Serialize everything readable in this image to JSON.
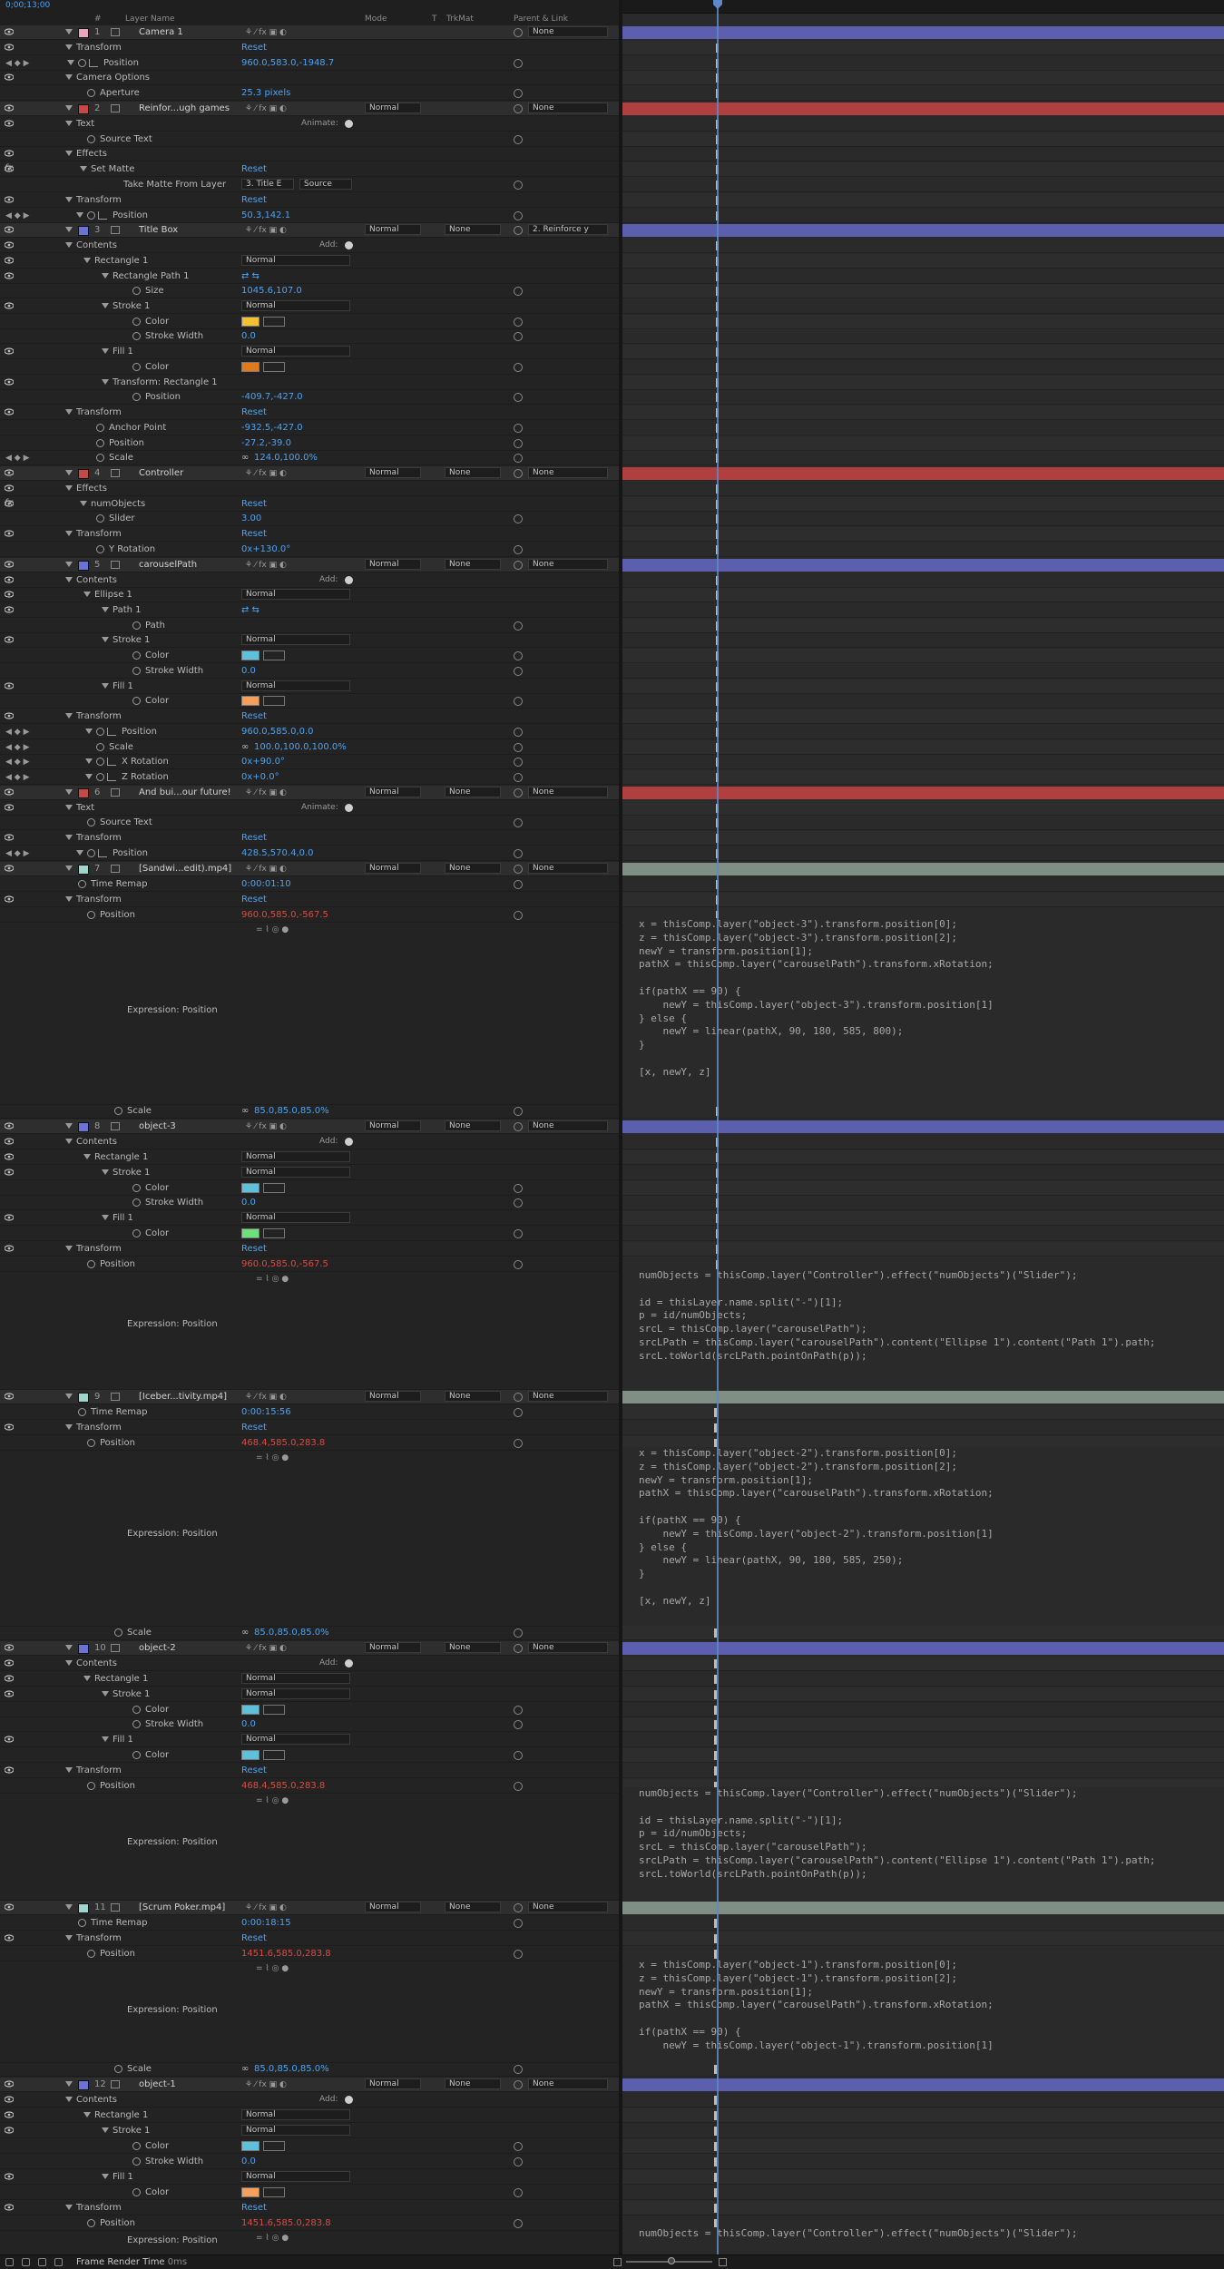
{
  "header": {
    "columns": {
      "hash": "#",
      "layer_name": "Layer Name",
      "mode": "Mode",
      "t": "T",
      "trkmat": "TrkMat",
      "parent": "Parent & Link"
    },
    "timecode": "0;00;13;00"
  },
  "colors": {
    "accent_blue": "#4aa3f5",
    "keyframe_red": "#e0493f",
    "cti": "#5f88c7",
    "bar_purple": "#5b5fae",
    "bar_red": "#b04040",
    "bar_gray": "#7f8f86"
  },
  "labels": {
    "reset": "Reset",
    "add": "Add:",
    "animate": "Animate:",
    "expression_position": "Expression: Position",
    "stroke_width": "Stroke Width",
    "color": "Color"
  },
  "layers": [
    {
      "num": "1",
      "name": "Camera 1",
      "parent": "None",
      "swatch": "#e6a7b8"
    },
    {
      "num": "2",
      "name": "Reinfor...ugh games",
      "mode": "Normal",
      "parent": "None",
      "swatch": "#c44a4a"
    },
    {
      "num": "3",
      "name": "Title Box",
      "mode": "Normal",
      "trkmat": "None",
      "parent": "2. Reinforce y",
      "swatch": "#6a72d6"
    },
    {
      "num": "4",
      "name": "Controller",
      "mode": "Normal",
      "trkmat": "None",
      "parent": "None",
      "swatch": "#c44a4a"
    },
    {
      "num": "5",
      "name": "carouselPath",
      "mode": "Normal",
      "trkmat": "None",
      "parent": "None",
      "swatch": "#6a72d6"
    },
    {
      "num": "6",
      "name": "And bui...our future!",
      "mode": "Normal",
      "trkmat": "None",
      "parent": "None",
      "swatch": "#c44a4a"
    },
    {
      "num": "7",
      "name": "[Sandwi...edit).mp4]",
      "mode": "Normal",
      "trkmat": "None",
      "parent": "None",
      "swatch": "#9ed6cf"
    },
    {
      "num": "8",
      "name": "object-3",
      "mode": "Normal",
      "trkmat": "None",
      "parent": "None",
      "swatch": "#6a72d6"
    },
    {
      "num": "9",
      "name": "[Iceber...tivity.mp4]",
      "mode": "Normal",
      "trkmat": "None",
      "parent": "None",
      "swatch": "#9ed6cf"
    },
    {
      "num": "10",
      "name": "object-2",
      "mode": "Normal",
      "trkmat": "None",
      "parent": "None",
      "swatch": "#6a72d6"
    },
    {
      "num": "11",
      "name": "[Scrum Poker.mp4]",
      "mode": "Normal",
      "trkmat": "None",
      "parent": "None",
      "swatch": "#9ed6cf"
    },
    {
      "num": "12",
      "name": "object-1",
      "mode": "Normal",
      "trkmat": "None",
      "parent": "None",
      "swatch": "#6a72d6"
    }
  ],
  "props": {
    "l1_transform": "Transform",
    "l1_position": "Position",
    "l1_position_val": "960.0,583.0,-1948.7",
    "l1_camopts": "Camera Options",
    "l1_aperture": "Aperture",
    "l1_aperture_val": "25.3 pixels",
    "l2_text": "Text",
    "l2_source": "Source Text",
    "l2_effects": "Effects",
    "l2_setmatte": "Set Matte",
    "l2_takematte": "Take Matte From Layer",
    "l2_takematte_val": "3. Title E",
    "l2_source_dd": "Source",
    "l2_transform": "Transform",
    "l2_position": "Position",
    "l2_position_val": "50.3,142.1",
    "l3_contents": "Contents",
    "l3_rect": "Rectangle 1",
    "l3_rect_mode": "Normal",
    "l3_rectpath": "Rectangle Path 1",
    "l3_size": "Size",
    "l3_size_val": "1045.6,107.0",
    "l3_stroke": "Stroke 1",
    "l3_stroke_mode": "Normal",
    "l3_stroke_width_val": "0.0",
    "l3_fill": "Fill 1",
    "l3_fill_mode": "Normal",
    "l3_trans_rect": "Transform: Rectangle 1",
    "l3_trans_pos": "Position",
    "l3_trans_pos_val": "-409.7,-427.0",
    "l3_transform": "Transform",
    "l3_anchor": "Anchor Point",
    "l3_anchor_val": "-932.5,-427.0",
    "l3_position": "Position",
    "l3_position_val": "-27.2,-39.0",
    "l3_scale": "Scale",
    "l3_scale_val": "124.0,100.0%",
    "l4_effects": "Effects",
    "l4_numobj": "numObjects",
    "l4_slider": "Slider",
    "l4_slider_val": "3.00",
    "l4_transform": "Transform",
    "l4_yrot": "Y Rotation",
    "l4_yrot_val": "0x+130.0°",
    "l5_contents": "Contents",
    "l5_ellipse": "Ellipse 1",
    "l5_ellipse_mode": "Normal",
    "l5_path1": "Path 1",
    "l5_path": "Path",
    "l5_stroke": "Stroke 1",
    "l5_stroke_mode": "Normal",
    "l5_stroke_width_val": "0.0",
    "l5_fill": "Fill 1",
    "l5_fill_mode": "Normal",
    "l5_transform": "Transform",
    "l5_position": "Position",
    "l5_position_val": "960.0,585.0,0.0",
    "l5_scale": "Scale",
    "l5_scale_val": "100.0,100.0,100.0%",
    "l5_xrot": "X Rotation",
    "l5_xrot_val": "0x+90.0°",
    "l5_zrot": "Z Rotation",
    "l5_zrot_val": "0x+0.0°",
    "l6_text": "Text",
    "l6_source": "Source Text",
    "l6_transform": "Transform",
    "l6_position": "Position",
    "l6_position_val": "428.5,570.4,0.0",
    "l7_timeremap": "Time Remap",
    "l7_timeremap_val": "0:00:01:10",
    "l7_transform": "Transform",
    "l7_position": "Position",
    "l7_position_val": "960.0,585.0,-567.5",
    "l7_scale": "Scale",
    "l7_scale_val": "85.0,85.0,85.0%",
    "l8_contents": "Contents",
    "l8_rect": "Rectangle 1",
    "l8_rect_mode": "Normal",
    "l8_stroke": "Stroke 1",
    "l8_stroke_mode": "Normal",
    "l8_stroke_width_val": "0.0",
    "l8_fill": "Fill 1",
    "l8_fill_mode": "Normal",
    "l8_transform": "Transform",
    "l8_position": "Position",
    "l8_position_val": "960.0,585.0,-567.5",
    "l9_timeremap": "Time Remap",
    "l9_timeremap_val": "0:00:15:56",
    "l9_transform": "Transform",
    "l9_position": "Position",
    "l9_position_val": "468.4,585.0,283.8",
    "l9_scale": "Scale",
    "l9_scale_val": "85.0,85.0,85.0%",
    "l10_contents": "Contents",
    "l10_rect": "Rectangle 1",
    "l10_rect_mode": "Normal",
    "l10_stroke": "Stroke 1",
    "l10_stroke_mode": "Normal",
    "l10_stroke_width_val": "0.0",
    "l10_fill": "Fill 1",
    "l10_fill_mode": "Normal",
    "l10_transform": "Transform",
    "l10_position": "Position",
    "l10_position_val": "468.4,585.0,283.8",
    "l11_timeremap": "Time Remap",
    "l11_timeremap_val": "0:00:18:15",
    "l11_transform": "Transform",
    "l11_position": "Position",
    "l11_position_val": "1451.6,585.0,283.8",
    "l11_scale": "Scale",
    "l11_scale_val": "85.0,85.0,85.0%",
    "l12_contents": "Contents",
    "l12_rect": "Rectangle 1",
    "l12_rect_mode": "Normal",
    "l12_stroke": "Stroke 1",
    "l12_stroke_mode": "Normal",
    "l12_stroke_width_val": "0.0",
    "l12_fill": "Fill 1",
    "l12_fill_mode": "Normal",
    "l12_transform": "Transform",
    "l12_position": "Position",
    "l12_position_val": "1451.6,585.0,283.8"
  },
  "swatch_colors": {
    "l3_stroke": "#f2c230",
    "l3_fill": "#e07a1a",
    "l5_stroke": "#5ec0da",
    "l5_fill": "#f5a15c",
    "l8_stroke": "#5ec0da",
    "l8_fill": "#6ee07a",
    "l10_stroke": "#5ec0da",
    "l10_fill": "#5ec0da",
    "l12_stroke": "#5ec0da",
    "l12_fill": "#f5a15c"
  },
  "expressions": {
    "l7": "x = thisComp.layer(\"object-3\").transform.position[0];\nz = thisComp.layer(\"object-3\").transform.position[2];\nnewY = transform.position[1];\npathX = thisComp.layer(\"carouselPath\").transform.xRotation;\n\nif(pathX == 90) {\n    newY = thisComp.layer(\"object-3\").transform.position[1]\n} else {\n    newY = linear(pathX, 90, 180, 585, 800);\n}\n\n[x, newY, z]",
    "l8": "numObjects = thisComp.layer(\"Controller\").effect(\"numObjects\")(\"Slider\");\n\nid = thisLayer.name.split(\"-\")[1];\np = id/numObjects;\nsrcL = thisComp.layer(\"carouselPath\");\nsrcLPath = thisComp.layer(\"carouselPath\").content(\"Ellipse 1\").content(\"Path 1\").path;\nsrcL.toWorld(srcLPath.pointOnPath(p));",
    "l9": "x = thisComp.layer(\"object-2\").transform.position[0];\nz = thisComp.layer(\"object-2\").transform.position[2];\nnewY = transform.position[1];\npathX = thisComp.layer(\"carouselPath\").transform.xRotation;\n\nif(pathX == 90) {\n    newY = thisComp.layer(\"object-2\").transform.position[1]\n} else {\n    newY = linear(pathX, 90, 180, 585, 250);\n}\n\n[x, newY, z]",
    "l10": "numObjects = thisComp.layer(\"Controller\").effect(\"numObjects\")(\"Slider\");\n\nid = thisLayer.name.split(\"-\")[1];\np = id/numObjects;\nsrcL = thisComp.layer(\"carouselPath\");\nsrcLPath = thisComp.layer(\"carouselPath\").content(\"Ellipse 1\").content(\"Path 1\").path;\nsrcL.toWorld(srcLPath.pointOnPath(p));",
    "l11": "x = thisComp.layer(\"object-1\").transform.position[0];\nz = thisComp.layer(\"object-1\").transform.position[2];\nnewY = transform.position[1];\npathX = thisComp.layer(\"carouselPath\").transform.xRotation;\n\nif(pathX == 90) {\n    newY = thisComp.layer(\"object-1\").transform.position[1]",
    "l12": "numObjects = thisComp.layer(\"Controller\").effect(\"numObjects\")(\"Slider\");"
  },
  "footer": {
    "frame_render_label": "Frame Render Time",
    "frame_render_val": "0ms"
  }
}
